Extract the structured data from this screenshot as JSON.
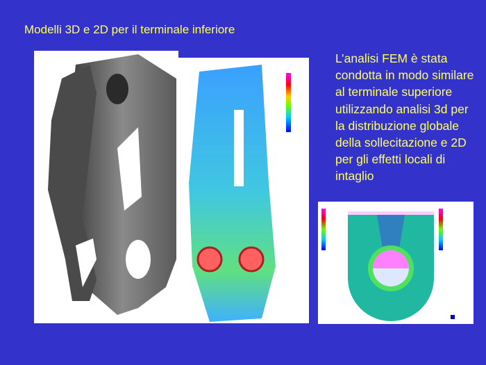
{
  "slide": {
    "title": "Modelli 3D e 2D per il terminale inferiore",
    "body": "L’analisi FEM è stata condotta in modo similare al terminale superiore utilizzando analisi 3d per la distribuzione globale della sollecitazione e 2D per gli effetti locali di intaglio"
  },
  "colors": {
    "background": "#3333cc",
    "text": "#ffff66"
  },
  "images": [
    "3d-model-render",
    "3d-fem-stress-plot",
    "2d-fem-notch-plot"
  ]
}
